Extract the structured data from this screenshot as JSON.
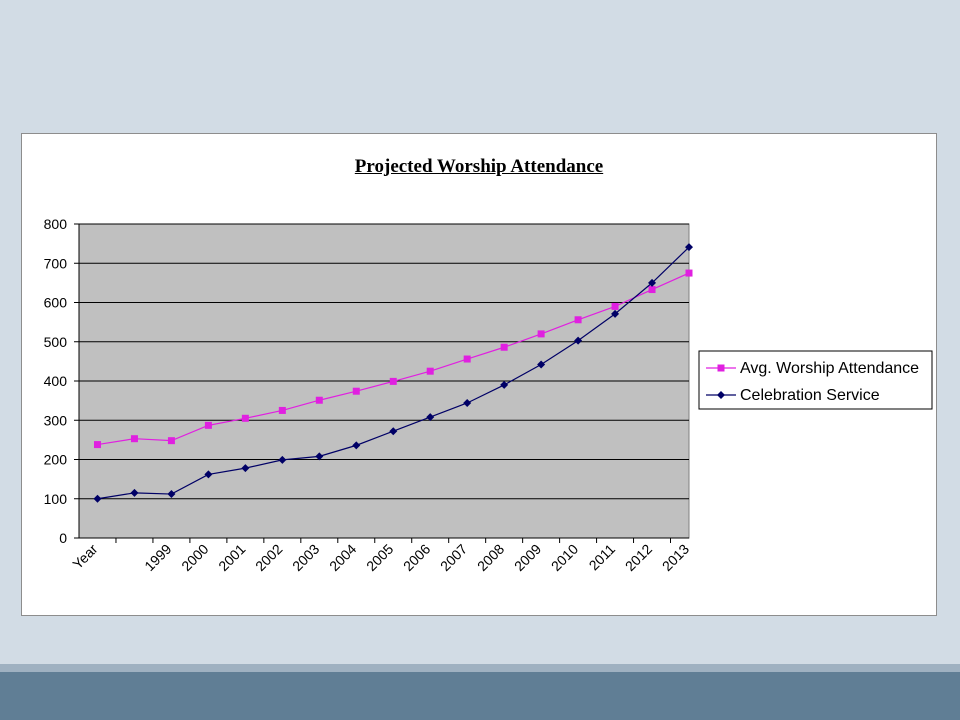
{
  "chart_data": {
    "type": "line",
    "title": "Projected Worship Attendance",
    "categories": [
      "Year",
      "",
      "1999",
      "2000",
      "2001",
      "2002",
      "2003",
      "2004",
      "2005",
      "2006",
      "2007",
      "2008",
      "2009",
      "2010",
      "2011",
      "2012",
      "2013"
    ],
    "ylim": [
      0,
      800
    ],
    "yticks": [
      0,
      100,
      200,
      300,
      400,
      500,
      600,
      700,
      800
    ],
    "grid": true,
    "legend_position": "right",
    "series": [
      {
        "name": "Avg. Worship Attendance",
        "color": "#e020e0",
        "marker": "square",
        "values": [
          238,
          253,
          248,
          287,
          305,
          325,
          351,
          374,
          399,
          425,
          456,
          486,
          520,
          556,
          590,
          633,
          675
        ]
      },
      {
        "name": "Celebration Service",
        "color": "#000066",
        "marker": "diamond",
        "values": [
          100,
          115,
          112,
          162,
          178,
          199,
          208,
          236,
          272,
          308,
          344,
          390,
          442,
          503,
          571,
          650,
          741
        ]
      }
    ],
    "plot_background": "#c0c0c0"
  }
}
